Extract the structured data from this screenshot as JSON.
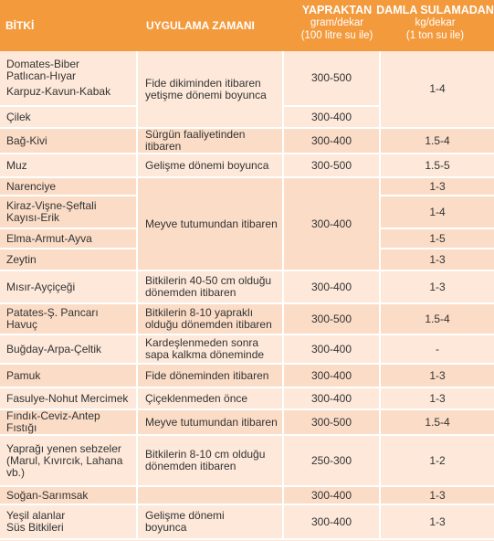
{
  "header": {
    "bitki": "BİTKİ",
    "uygulama": "UYGULAMA ZAMANI",
    "yapraktan_title": "YAPRAKTAN",
    "yapraktan_unit1": "gram/dekar",
    "yapraktan_unit2": "(100 litre su ile)",
    "damla_title": "DAMLA SULAMADAN",
    "damla_unit1": "kg/dekar",
    "damla_unit2": "(1 ton su ile)"
  },
  "rows": {
    "r1": {
      "plants": [
        "Domates-Biber",
        "Patlıcan-Hıyar",
        "Karpuz-Kavun-Kabak"
      ],
      "time": [
        "Fide dikiminden itibaren",
        "yetişme dönemi boyunca"
      ],
      "yaprak": "300-500",
      "damla": "1-4"
    },
    "r2": {
      "plant": "Çilek",
      "yaprak": "300-400"
    },
    "r3": {
      "plant": "Bağ-Kivi",
      "time": "Sürgün faaliyetinden itibaren",
      "yaprak": "300-400",
      "damla": "1.5-4"
    },
    "r4": {
      "plant": "Muz",
      "time": "Gelişme dönemi boyunca",
      "yaprak": "300-500",
      "damla": "1.5-5"
    },
    "r5": {
      "plant": "Narenciye",
      "damla": "1-3"
    },
    "r6": {
      "plants": [
        "Kiraz-Vişne-Şeftali",
        "Kayısı-Erik"
      ],
      "time": "Meyve tutumundan itibaren",
      "yaprak": "300-400",
      "damla": "1-4"
    },
    "r7": {
      "plant": "Elma-Armut-Ayva",
      "damla": "1-5"
    },
    "r8": {
      "plant": "Zeytin",
      "damla": "1-3"
    },
    "r9": {
      "plant": "Mısır-Ayçiçeği",
      "time": [
        "Bitkilerin 40-50 cm olduğu",
        "dönemden itibaren"
      ],
      "yaprak": "300-400",
      "damla": "1-3"
    },
    "r10": {
      "plant": "Patates-Ş. Pancarı Havuç",
      "time": [
        "Bitkilerin 8-10 yapraklı",
        "olduğu dönemden itibaren"
      ],
      "yaprak": "300-500",
      "damla": "1.5-4"
    },
    "r11": {
      "plant": "Buğday-Arpa-Çeltik",
      "time": [
        "Kardeşlenmeden sonra",
        "sapa kalkma döneminde"
      ],
      "yaprak": "300-400",
      "damla": "-"
    },
    "r12": {
      "plant": "Pamuk",
      "time": "Fide döneminden itibaren",
      "yaprak": "300-400",
      "damla": "1-3"
    },
    "r13": {
      "plant": "Fasulye-Nohut Mercimek",
      "time": "Çiçeklenmeden önce",
      "yaprak": "300-400",
      "damla": "1-3"
    },
    "r14": {
      "plant": "Fındık-Ceviz-Antep Fıstığı",
      "time": "Meyve tutumundan itibaren",
      "yaprak": "300-500",
      "damla": "1.5-4"
    },
    "r15": {
      "plants": [
        "Yaprağı yenen sebzeler",
        "(Marul, Kıvırcık, Lahana",
        "vb.)"
      ],
      "time": [
        "Bitkilerin 8-10 cm olduğu",
        "dönemden itibaren"
      ],
      "yaprak": "250-300",
      "damla": "1-2"
    },
    "r16": {
      "plant": "Soğan-Sarımsak",
      "yaprak": "300-400",
      "damla": "1-3"
    },
    "r17": {
      "plants": [
        "Yeşil alanlar",
        "Süs Bitkileri"
      ],
      "time": [
        "Gelişme dönemi",
        "boyunca"
      ],
      "yaprak": "300-400",
      "damla": "1-3"
    }
  }
}
